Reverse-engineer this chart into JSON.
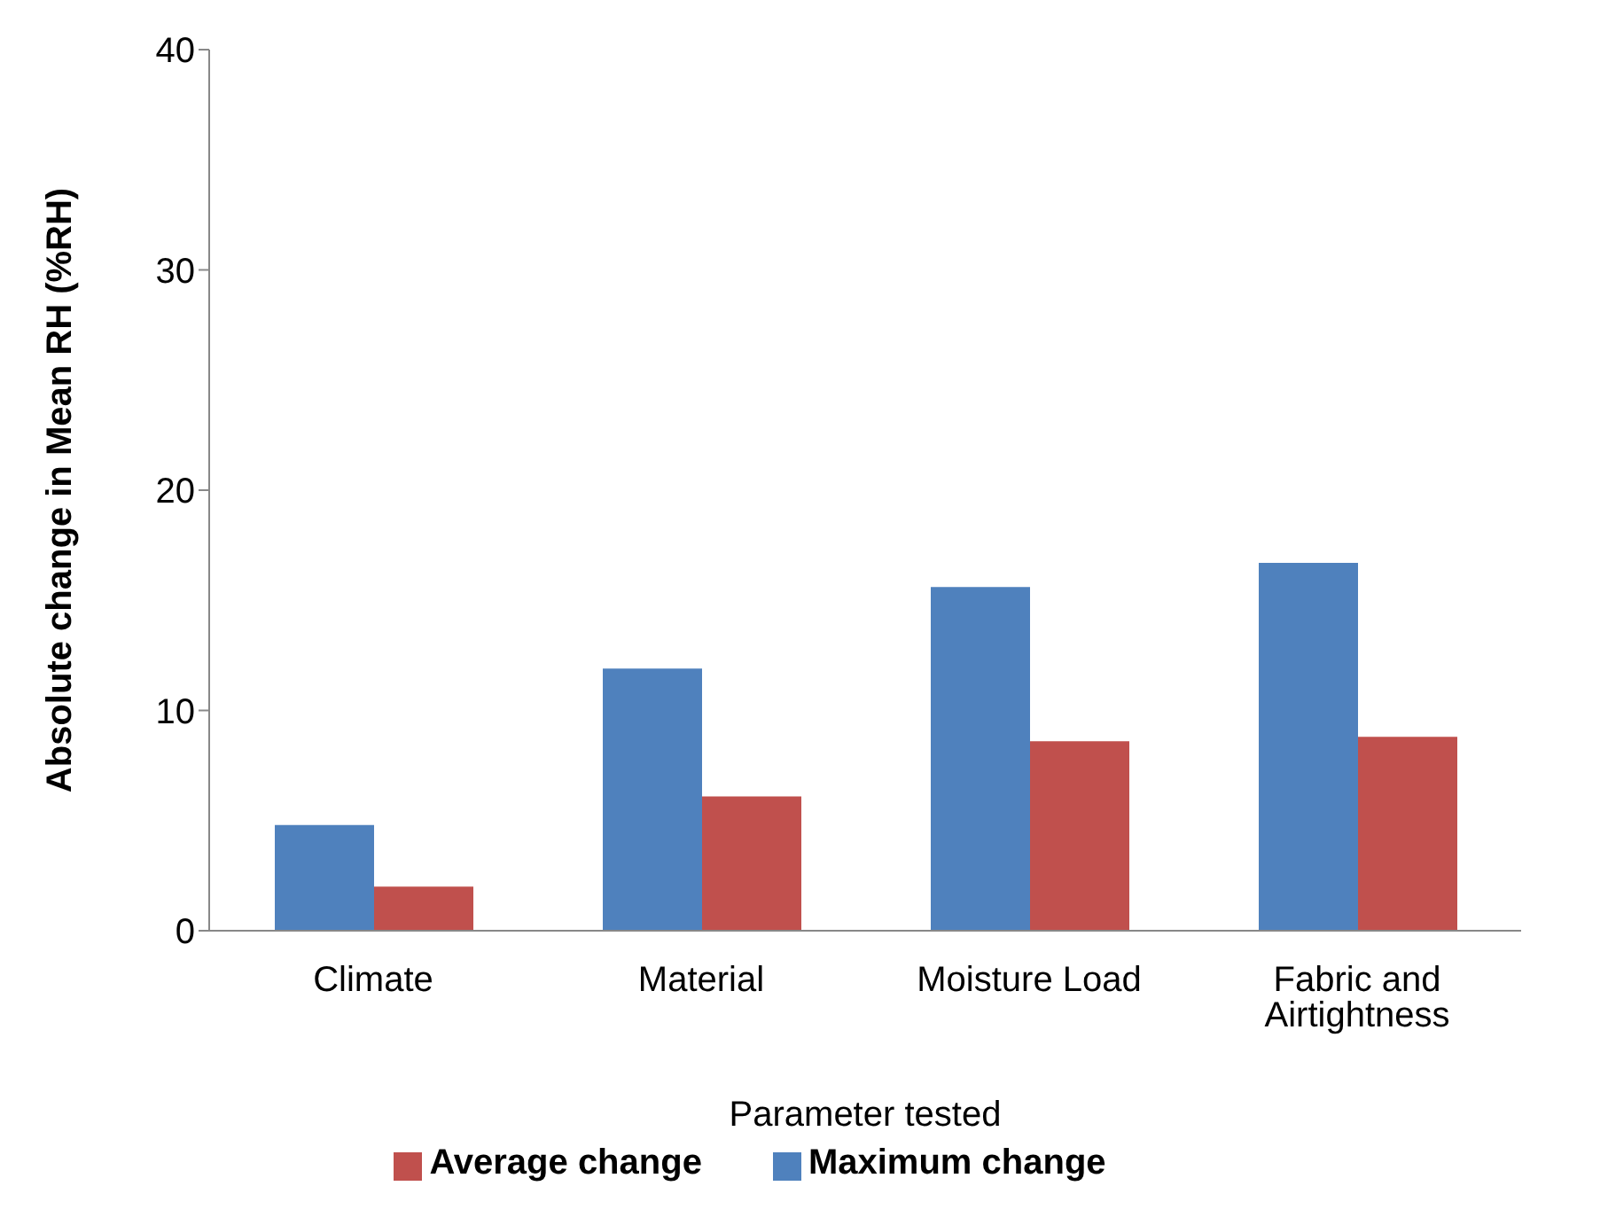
{
  "chart_data": {
    "type": "bar",
    "xlabel": "Parameter tested",
    "ylabel": "Absolute change in Mean RH (%RH)",
    "categories": [
      "Climate",
      "Material",
      "Moisture Load",
      "Fabric and Airtightness"
    ],
    "series": [
      {
        "name": "Maximum change",
        "color": "#4f81bd",
        "values": [
          4.8,
          11.9,
          15.6,
          16.7
        ]
      },
      {
        "name": "Average change",
        "color": "#c0504d",
        "values": [
          2.0,
          6.1,
          8.6,
          8.8
        ]
      }
    ],
    "ylim": [
      0,
      40
    ],
    "yticks": [
      0,
      10,
      20,
      30,
      40
    ],
    "grid": false,
    "legend": "bottom"
  }
}
